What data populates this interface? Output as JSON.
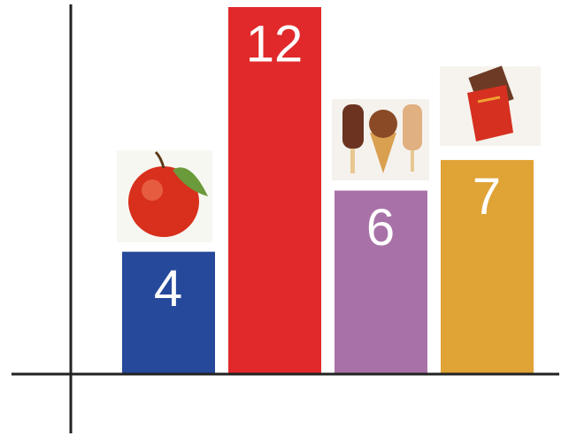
{
  "chart_data": {
    "type": "bar",
    "categories": [
      null,
      null,
      null,
      null
    ],
    "values": [
      4,
      12,
      6,
      7
    ],
    "colors": [
      "#27499b",
      "#e1292b",
      "#a872a8",
      "#e0a336"
    ],
    "ylim": [
      0,
      12
    ]
  }
}
